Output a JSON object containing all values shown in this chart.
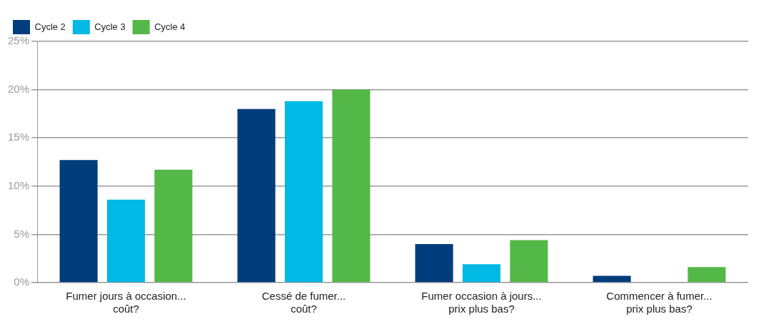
{
  "chart_data": {
    "type": "bar",
    "categories": [
      "Fumer jours à occasion...\ncoût?",
      "Cessé de fumer...\ncoût?",
      "Fumer occasion à jours...\nprix plus bas?",
      "Commencer à fumer...\nprix plus bas?"
    ],
    "series": [
      {
        "name": "Cycle 2",
        "color": "#003d7c",
        "values": [
          12.7,
          18.0,
          4.0,
          0.7
        ]
      },
      {
        "name": "Cycle 3",
        "color": "#00b9e4",
        "values": [
          8.6,
          18.8,
          1.9,
          null
        ]
      },
      {
        "name": "Cycle 4",
        "color": "#54b848",
        "values": [
          11.7,
          20.0,
          4.4,
          1.6
        ]
      }
    ],
    "ylim": [
      0,
      25
    ],
    "yticks": [
      {
        "value": 0,
        "label": "0%"
      },
      {
        "value": 5,
        "label": "5%"
      },
      {
        "value": 10,
        "label": "10%"
      },
      {
        "value": 15,
        "label": "15%"
      },
      {
        "value": 20,
        "label": "20%"
      },
      {
        "value": 25,
        "label": "25%"
      }
    ],
    "grid": "y",
    "legend": "top left"
  }
}
